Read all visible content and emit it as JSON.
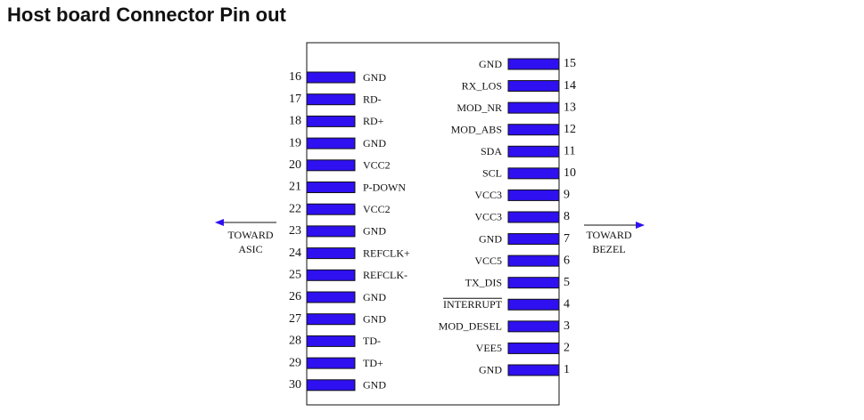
{
  "header": {
    "title": "Host board Connector Pin out"
  },
  "left_direction": {
    "line1": "TOWARD",
    "line2": "ASIC"
  },
  "right_direction": {
    "line1": "TOWARD",
    "line2": "BEZEL"
  },
  "left_pins": [
    {
      "number": 16,
      "label": "GND"
    },
    {
      "number": 17,
      "label": "RD-"
    },
    {
      "number": 18,
      "label": "RD+"
    },
    {
      "number": 19,
      "label": "GND"
    },
    {
      "number": 20,
      "label": "VCC2"
    },
    {
      "number": 21,
      "label": "P-DOWN"
    },
    {
      "number": 22,
      "label": "VCC2"
    },
    {
      "number": 23,
      "label": "GND"
    },
    {
      "number": 24,
      "label": "REFCLK+"
    },
    {
      "number": 25,
      "label": "REFCLK-"
    },
    {
      "number": 26,
      "label": "GND"
    },
    {
      "number": 27,
      "label": "GND"
    },
    {
      "number": 28,
      "label": "TD-"
    },
    {
      "number": 29,
      "label": "TD+"
    },
    {
      "number": 30,
      "label": "GND"
    }
  ],
  "right_pins": [
    {
      "number": 15,
      "label": "GND"
    },
    {
      "number": 14,
      "label": "RX_LOS"
    },
    {
      "number": 13,
      "label": "MOD_NR"
    },
    {
      "number": 12,
      "label": "MOD_ABS"
    },
    {
      "number": 11,
      "label": "SDA"
    },
    {
      "number": 10,
      "label": "SCL"
    },
    {
      "number": 9,
      "label": "VCC3"
    },
    {
      "number": 8,
      "label": "VCC3"
    },
    {
      "number": 7,
      "label": "GND"
    },
    {
      "number": 6,
      "label": "VCC5"
    },
    {
      "number": 5,
      "label": "TX_DIS"
    },
    {
      "number": 4,
      "label": "INTERRUPT",
      "overline": true
    },
    {
      "number": 3,
      "label": "MOD_DESEL"
    },
    {
      "number": 2,
      "label": "VEE5"
    },
    {
      "number": 1,
      "label": "GND"
    }
  ]
}
